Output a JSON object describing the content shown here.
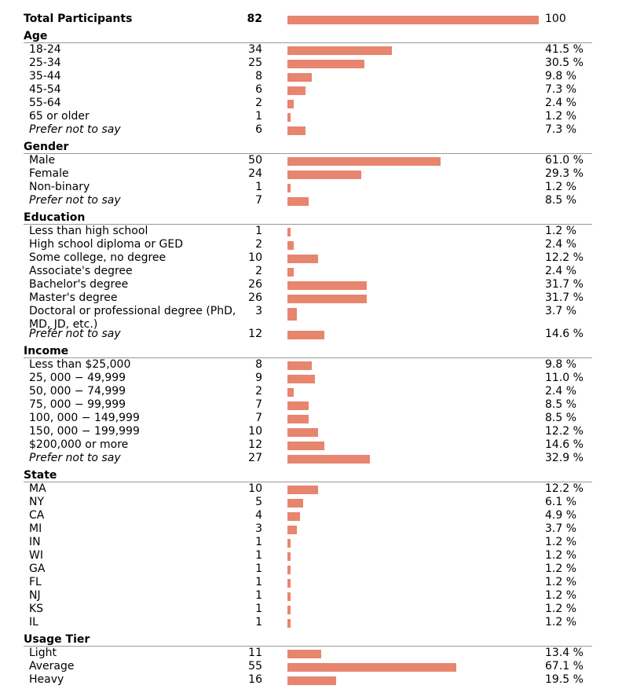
{
  "colors": {
    "bar": "#e8856e",
    "rule": "#999999"
  },
  "chart_data": {
    "type": "bar",
    "orientation": "horizontal",
    "total": {
      "label": "Total Participants",
      "count": 82,
      "percent": "100"
    },
    "max_value": 100,
    "sections": [
      {
        "title": "Age",
        "rows": [
          {
            "label": "18-24",
            "count": 34,
            "percent": "41.5 %",
            "value": 41.5
          },
          {
            "label": "25-34",
            "count": 25,
            "percent": "30.5 %",
            "value": 30.5
          },
          {
            "label": "35-44",
            "count": 8,
            "percent": "9.8 %",
            "value": 9.8
          },
          {
            "label": "45-54",
            "count": 6,
            "percent": "7.3 %",
            "value": 7.3
          },
          {
            "label": "55-64",
            "count": 2,
            "percent": "2.4 %",
            "value": 2.4
          },
          {
            "label": "65 or older",
            "count": 1,
            "percent": "1.2 %",
            "value": 1.2
          },
          {
            "label": "Prefer not to say",
            "count": 6,
            "percent": "7.3 %",
            "value": 7.3,
            "italic": true
          }
        ]
      },
      {
        "title": "Gender",
        "rows": [
          {
            "label": "Male",
            "count": 50,
            "percent": "61.0 %",
            "value": 61.0
          },
          {
            "label": "Female",
            "count": 24,
            "percent": "29.3 %",
            "value": 29.3
          },
          {
            "label": "Non-binary",
            "count": 1,
            "percent": "1.2 %",
            "value": 1.2
          },
          {
            "label": "Prefer not to say",
            "count": 7,
            "percent": "8.5 %",
            "value": 8.5,
            "italic": true
          }
        ]
      },
      {
        "title": "Education",
        "rows": [
          {
            "label": "Less than high school",
            "count": 1,
            "percent": "1.2 %",
            "value": 1.2
          },
          {
            "label": "High school diploma or GED",
            "count": 2,
            "percent": "2.4 %",
            "value": 2.4
          },
          {
            "label": "Some college, no degree",
            "count": 10,
            "percent": "12.2 %",
            "value": 12.2
          },
          {
            "label": "Associate's degree",
            "count": 2,
            "percent": "2.4 %",
            "value": 2.4
          },
          {
            "label": "Bachelor's degree",
            "count": 26,
            "percent": "31.7 %",
            "value": 31.7
          },
          {
            "label": "Master's degree",
            "count": 26,
            "percent": "31.7 %",
            "value": 31.7
          },
          {
            "label": "Doctoral or professional degree (PhD, MD, JD, etc.)",
            "count": 3,
            "percent": "3.7 %",
            "value": 3.7,
            "wrap": true
          },
          {
            "label": "Prefer not to say",
            "count": 12,
            "percent": "14.6 %",
            "value": 14.6,
            "italic": true
          }
        ]
      },
      {
        "title": "Income",
        "rows": [
          {
            "label": "Less than $25,000",
            "count": 8,
            "percent": "9.8 %",
            "value": 9.8
          },
          {
            "label": "25, 000 − 49,999",
            "count": 9,
            "percent": "11.0 %",
            "value": 11.0
          },
          {
            "label": "50, 000 − 74,999",
            "count": 2,
            "percent": "2.4 %",
            "value": 2.4
          },
          {
            "label": "75, 000 − 99,999",
            "count": 7,
            "percent": "8.5 %",
            "value": 8.5
          },
          {
            "label": "100, 000 − 149,999",
            "count": 7,
            "percent": "8.5 %",
            "value": 8.5
          },
          {
            "label": "150, 000 − 199,999",
            "count": 10,
            "percent": "12.2 %",
            "value": 12.2
          },
          {
            "label": "$200,000 or more",
            "count": 12,
            "percent": "14.6 %",
            "value": 14.6
          },
          {
            "label": "Prefer not to say",
            "count": 27,
            "percent": "32.9 %",
            "value": 32.9,
            "italic": true
          }
        ]
      },
      {
        "title": "State",
        "rows": [
          {
            "label": "MA",
            "count": 10,
            "percent": "12.2 %",
            "value": 12.2
          },
          {
            "label": "NY",
            "count": 5,
            "percent": "6.1 %",
            "value": 6.1
          },
          {
            "label": "CA",
            "count": 4,
            "percent": "4.9 %",
            "value": 4.9
          },
          {
            "label": "MI",
            "count": 3,
            "percent": "3.7 %",
            "value": 3.7
          },
          {
            "label": "IN",
            "count": 1,
            "percent": "1.2 %",
            "value": 1.2
          },
          {
            "label": "WI",
            "count": 1,
            "percent": "1.2 %",
            "value": 1.2
          },
          {
            "label": "GA",
            "count": 1,
            "percent": "1.2 %",
            "value": 1.2
          },
          {
            "label": "FL",
            "count": 1,
            "percent": "1.2 %",
            "value": 1.2
          },
          {
            "label": "NJ",
            "count": 1,
            "percent": "1.2 %",
            "value": 1.2
          },
          {
            "label": "KS",
            "count": 1,
            "percent": "1.2 %",
            "value": 1.2
          },
          {
            "label": "IL",
            "count": 1,
            "percent": "1.2 %",
            "value": 1.2
          }
        ]
      },
      {
        "title": "Usage Tier",
        "rows": [
          {
            "label": "Light",
            "count": 11,
            "percent": "13.4 %",
            "value": 13.4
          },
          {
            "label": "Average",
            "count": 55,
            "percent": "67.1 %",
            "value": 67.1
          },
          {
            "label": "Heavy",
            "count": 16,
            "percent": "19.5 %",
            "value": 19.5
          }
        ]
      }
    ]
  }
}
